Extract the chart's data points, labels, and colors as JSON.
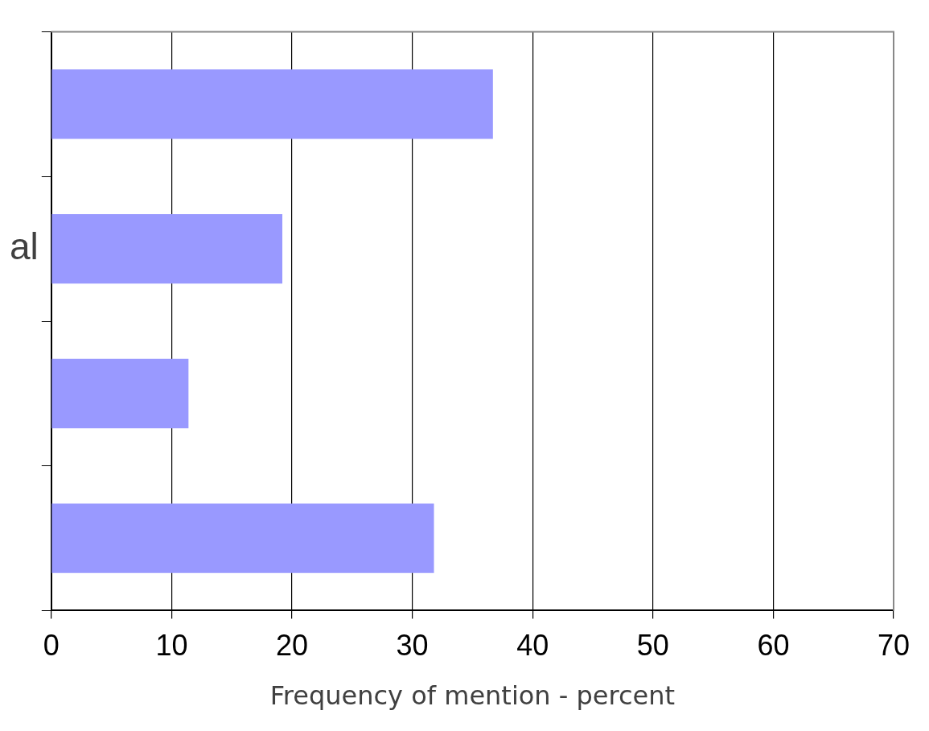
{
  "chart_data": {
    "type": "bar",
    "orientation": "horizontal",
    "xlabel": "Frequency of mention - percent",
    "categories": [
      null,
      "al",
      null,
      null
    ],
    "values": [
      36.7,
      19.2,
      11.4,
      31.8
    ],
    "color": "#9999ff",
    "xlim": [
      0,
      70
    ],
    "xticks": [
      0,
      10,
      20,
      30,
      40,
      50,
      60,
      70
    ],
    "grid": "x",
    "legend": false
  }
}
